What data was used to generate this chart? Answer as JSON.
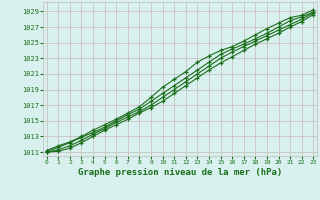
{
  "x": [
    0,
    1,
    2,
    3,
    4,
    5,
    6,
    7,
    8,
    9,
    10,
    11,
    12,
    13,
    14,
    15,
    16,
    17,
    18,
    19,
    20,
    21,
    22,
    23
  ],
  "series": [
    [
      1011.2,
      1011.8,
      1012.3,
      1013.0,
      1013.8,
      1014.5,
      1015.2,
      1016.0,
      1016.8,
      1018.0,
      1019.3,
      1020.3,
      1021.3,
      1022.5,
      1023.3,
      1024.0,
      1024.5,
      1025.2,
      1026.0,
      1026.8,
      1027.5,
      1028.2,
      1028.5,
      1029.2
    ],
    [
      1011.1,
      1011.6,
      1012.2,
      1012.9,
      1013.5,
      1014.2,
      1015.0,
      1015.8,
      1016.5,
      1017.5,
      1018.5,
      1019.5,
      1020.5,
      1021.5,
      1022.5,
      1023.5,
      1024.2,
      1024.8,
      1025.5,
      1026.2,
      1027.0,
      1027.8,
      1028.3,
      1028.9
    ],
    [
      1011.0,
      1011.3,
      1011.8,
      1012.5,
      1013.3,
      1014.0,
      1014.8,
      1015.5,
      1016.2,
      1017.0,
      1018.0,
      1019.0,
      1020.0,
      1021.0,
      1022.0,
      1023.0,
      1023.8,
      1024.5,
      1025.2,
      1025.9,
      1026.6,
      1027.3,
      1028.0,
      1028.8
    ],
    [
      1011.0,
      1011.1,
      1011.5,
      1012.2,
      1013.0,
      1013.8,
      1014.5,
      1015.2,
      1016.0,
      1016.7,
      1017.5,
      1018.5,
      1019.5,
      1020.5,
      1021.5,
      1022.4,
      1023.2,
      1024.0,
      1024.8,
      1025.5,
      1026.2,
      1027.0,
      1027.7,
      1028.6
    ]
  ],
  "line_color": "#1a6e1a",
  "bg_color": "#d8f0ee",
  "grid_color": "#c8b8b8",
  "xlabel": "Graphe pression niveau de la mer (hPa)",
  "ylim_min": 1010.5,
  "ylim_max": 1030.2,
  "yticks": [
    1011,
    1013,
    1015,
    1017,
    1019,
    1021,
    1023,
    1025,
    1027,
    1029
  ],
  "xticks": [
    0,
    1,
    2,
    3,
    4,
    5,
    6,
    7,
    8,
    9,
    10,
    11,
    12,
    13,
    14,
    15,
    16,
    17,
    18,
    19,
    20,
    21,
    22,
    23
  ]
}
